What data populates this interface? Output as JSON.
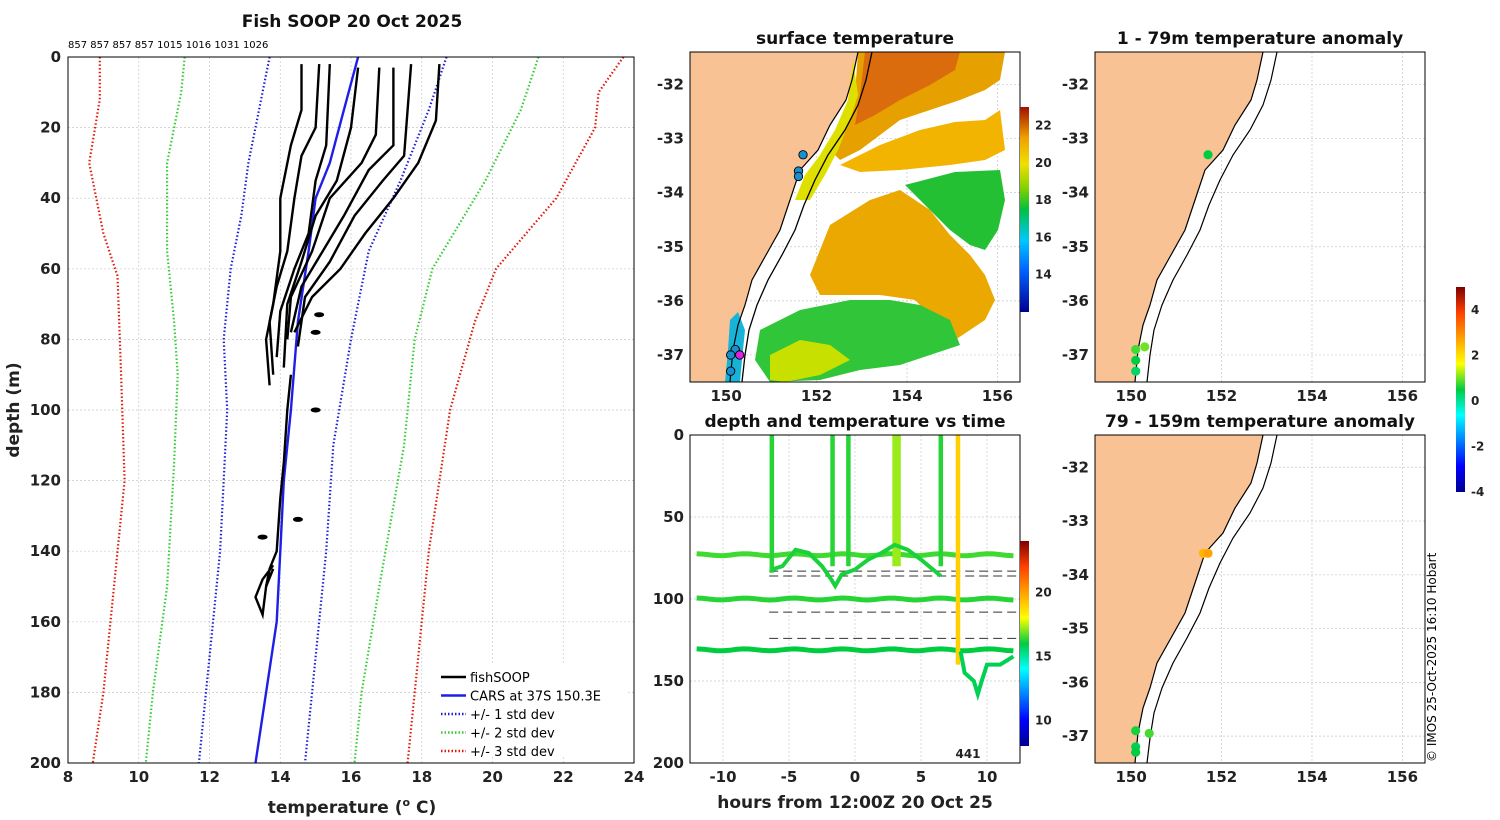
{
  "colors": {
    "land": "#f8c295",
    "black": "#000000",
    "cars": "#1e1ee6",
    "std1": "#1e1ed8",
    "std2": "#32cd32",
    "std3": "#e01a0a",
    "grid": "#c8c8c8"
  },
  "footer": {
    "copyright": "© IMOS 25-Oct-2025 16:10 Hobart"
  },
  "chart_data": [
    {
      "id": "profile",
      "type": "line",
      "title": "Fish SOOP 20 Oct 2025",
      "xlabel": "temperature (",
      "xlabel_sup": "o",
      "xlabel_unit": "C)",
      "ylabel": "depth (m)",
      "xlim": [
        8,
        24
      ],
      "ylim": [
        200,
        0
      ],
      "xticks": [
        "8",
        "10",
        "12",
        "14",
        "16",
        "18",
        "20",
        "22",
        "24"
      ],
      "yticks": [
        "0",
        "20",
        "40",
        "60",
        "80",
        "100",
        "120",
        "140",
        "160",
        "180",
        "200"
      ],
      "top_numbers": "857 857 857 857 1015 1016 1031 1026",
      "legend": [
        {
          "label": "fishSOOP",
          "style": "solid",
          "color_key": "black"
        },
        {
          "label": "CARS at 37S 150.3E",
          "style": "solid",
          "color_key": "cars"
        },
        {
          "label": "+/- 1 std dev",
          "style": "dotted",
          "color_key": "std1"
        },
        {
          "label": "+/- 2 std dev",
          "style": "dotted",
          "color_key": "std2"
        },
        {
          "label": "+/- 3 std dev",
          "style": "dotted",
          "color_key": "std3"
        }
      ],
      "series": [
        {
          "name": "CARS at 37S 150.3E",
          "color_key": "cars",
          "style": "solid",
          "points": [
            [
              16.2,
              0
            ],
            [
              15.8,
              15
            ],
            [
              15.4,
              30
            ],
            [
              15.0,
              40
            ],
            [
              14.8,
              55
            ],
            [
              14.5,
              75
            ],
            [
              14.3,
              100
            ],
            [
              14.1,
              120
            ],
            [
              14.0,
              140
            ],
            [
              13.9,
              160
            ],
            [
              13.6,
              180
            ],
            [
              13.3,
              200
            ]
          ]
        },
        {
          "name": "-1 std",
          "color_key": "std1",
          "style": "dotted",
          "points": [
            [
              13.7,
              0
            ],
            [
              13.4,
              15
            ],
            [
              13.1,
              30
            ],
            [
              12.9,
              45
            ],
            [
              12.6,
              60
            ],
            [
              12.4,
              80
            ],
            [
              12.5,
              100
            ],
            [
              12.4,
              120
            ],
            [
              12.3,
              140
            ],
            [
              12.0,
              170
            ],
            [
              11.7,
              200
            ]
          ]
        },
        {
          "name": "+1 std",
          "color_key": "std1",
          "style": "dotted",
          "points": [
            [
              18.7,
              0
            ],
            [
              18.2,
              15
            ],
            [
              17.4,
              35
            ],
            [
              16.5,
              55
            ],
            [
              16.0,
              80
            ],
            [
              15.5,
              110
            ],
            [
              15.3,
              140
            ],
            [
              15.0,
              170
            ],
            [
              14.7,
              200
            ]
          ]
        },
        {
          "name": "-2 std",
          "color_key": "std2",
          "style": "dotted",
          "points": [
            [
              11.3,
              0
            ],
            [
              11.2,
              10
            ],
            [
              10.8,
              30
            ],
            [
              10.8,
              55
            ],
            [
              11.0,
              75
            ],
            [
              11.1,
              90
            ],
            [
              11.0,
              115
            ],
            [
              10.8,
              150
            ],
            [
              10.4,
              180
            ],
            [
              10.2,
              200
            ]
          ]
        },
        {
          "name": "+2 std",
          "color_key": "std2",
          "style": "dotted",
          "points": [
            [
              21.3,
              0
            ],
            [
              20.8,
              15
            ],
            [
              19.8,
              35
            ],
            [
              18.3,
              60
            ],
            [
              17.8,
              80
            ],
            [
              17.5,
              110
            ],
            [
              16.8,
              150
            ],
            [
              16.3,
              180
            ],
            [
              16.1,
              200
            ]
          ]
        },
        {
          "name": "-3 std",
          "color_key": "std3",
          "style": "dotted",
          "points": [
            [
              8.9,
              0
            ],
            [
              8.9,
              12
            ],
            [
              8.6,
              30
            ],
            [
              9.0,
              50
            ],
            [
              9.4,
              62
            ],
            [
              9.5,
              90
            ],
            [
              9.6,
              120
            ],
            [
              9.3,
              150
            ],
            [
              9.0,
              180
            ],
            [
              8.7,
              200
            ]
          ]
        },
        {
          "name": "+3 std",
          "color_key": "std3",
          "style": "dotted",
          "points": [
            [
              23.7,
              0
            ],
            [
              23.0,
              10
            ],
            [
              22.9,
              20
            ],
            [
              21.8,
              40
            ],
            [
              20.1,
              60
            ],
            [
              19.5,
              75
            ],
            [
              18.8,
              100
            ],
            [
              18.2,
              140
            ],
            [
              17.8,
              180
            ],
            [
              17.6,
              200
            ]
          ]
        },
        {
          "name": "fishSOOP",
          "color_key": "black",
          "style": "solid",
          "points": [
            [
              14.6,
              2
            ],
            [
              14.6,
              15
            ],
            [
              14.3,
              25
            ],
            [
              14.0,
              40
            ],
            [
              14.0,
              55
            ],
            [
              13.8,
              70
            ],
            [
              13.6,
              80
            ],
            [
              13.7,
              93
            ]
          ]
        },
        {
          "name": "fishSOOP",
          "color_key": "black",
          "style": "solid",
          "points": [
            [
              15.1,
              2
            ],
            [
              15.0,
              20
            ],
            [
              14.6,
              28
            ],
            [
              14.4,
              40
            ],
            [
              14.2,
              55
            ],
            [
              13.9,
              65
            ],
            [
              13.7,
              75
            ],
            [
              13.8,
              90
            ]
          ]
        },
        {
          "name": "fishSOOP",
          "color_key": "black",
          "style": "solid",
          "points": [
            [
              15.4,
              2
            ],
            [
              15.3,
              25
            ],
            [
              15.0,
              35
            ],
            [
              14.8,
              50
            ],
            [
              14.4,
              60
            ],
            [
              14.0,
              72
            ],
            [
              13.9,
              85
            ]
          ]
        },
        {
          "name": "fishSOOP",
          "color_key": "black",
          "style": "solid",
          "points": [
            [
              16.2,
              3
            ],
            [
              16.0,
              20
            ],
            [
              15.6,
              35
            ],
            [
              15.0,
              45
            ],
            [
              14.6,
              58
            ],
            [
              14.2,
              70
            ],
            [
              14.1,
              88
            ]
          ]
        },
        {
          "name": "fishSOOP",
          "color_key": "black",
          "style": "solid",
          "points": [
            [
              16.8,
              3
            ],
            [
              16.7,
              22
            ],
            [
              16.3,
              30
            ],
            [
              15.4,
              40
            ],
            [
              14.9,
              55
            ],
            [
              14.3,
              68
            ],
            [
              14.2,
              80
            ]
          ]
        },
        {
          "name": "fishSOOP",
          "color_key": "black",
          "style": "solid",
          "points": [
            [
              17.2,
              3
            ],
            [
              17.2,
              25
            ],
            [
              16.5,
              32
            ],
            [
              15.8,
              45
            ],
            [
              15.2,
              55
            ],
            [
              14.6,
              65
            ],
            [
              14.3,
              78
            ]
          ]
        },
        {
          "name": "fishSOOP",
          "color_key": "black",
          "style": "solid",
          "points": [
            [
              17.7,
              2
            ],
            [
              17.5,
              28
            ],
            [
              16.9,
              35
            ],
            [
              16.1,
              45
            ],
            [
              15.4,
              58
            ],
            [
              14.7,
              68
            ],
            [
              14.5,
              82
            ]
          ]
        },
        {
          "name": "fishSOOP",
          "color_key": "black",
          "style": "solid",
          "points": [
            [
              18.5,
              2
            ],
            [
              18.4,
              18
            ],
            [
              17.9,
              30
            ],
            [
              17.2,
              40
            ],
            [
              16.4,
              50
            ],
            [
              15.7,
              60
            ],
            [
              14.9,
              68
            ],
            [
              14.4,
              78
            ]
          ]
        },
        {
          "name": "fishSOOP",
          "color_key": "black",
          "style": "solid",
          "points": [
            [
              14.3,
              90
            ],
            [
              14.2,
              100
            ],
            [
              14.1,
              115
            ],
            [
              14.0,
              125
            ],
            [
              13.9,
              140
            ],
            [
              13.7,
              145
            ],
            [
              13.6,
              150
            ],
            [
              13.8,
              145
            ]
          ]
        },
        {
          "name": "fishSOOP",
          "color_key": "black",
          "style": "solid",
          "points": [
            [
              13.8,
              144
            ],
            [
              13.5,
              148
            ],
            [
              13.3,
              153
            ],
            [
              13.5,
              158
            ],
            [
              13.6,
              150
            ],
            [
              13.7,
              146
            ]
          ]
        }
      ],
      "blobs": [
        [
          15.1,
          73
        ],
        [
          15.0,
          78
        ],
        [
          15.0,
          100
        ],
        [
          14.5,
          131
        ],
        [
          13.5,
          136
        ]
      ]
    },
    {
      "id": "sst-map",
      "type": "heatmap",
      "title": "surface temperature",
      "xlim": [
        149.2,
        156.5
      ],
      "ylim": [
        -37.5,
        -31.4
      ],
      "xticks": [
        "150",
        "152",
        "154",
        "156"
      ],
      "yticks": [
        "-32",
        "-33",
        "-34",
        "-35",
        "-36",
        "-37"
      ],
      "colorbar": {
        "min": 12,
        "max": 23,
        "ticks": [
          "14",
          "16",
          "18",
          "20",
          "22"
        ]
      },
      "stations": [
        [
          151.7,
          -33.3
        ],
        [
          151.6,
          -33.6
        ],
        [
          151.6,
          -33.7
        ],
        [
          150.2,
          -36.9
        ],
        [
          150.1,
          -37.0
        ],
        [
          150.1,
          -37.3
        ],
        [
          150.3,
          -37.0
        ]
      ]
    },
    {
      "id": "time-depth",
      "type": "scatter",
      "title": "depth and temperature vs time",
      "xlabel": "hours from 12:00Z 20 Oct 25",
      "xlim": [
        -12.5,
        12.5
      ],
      "ylim": [
        200,
        0
      ],
      "xticks": [
        "-10",
        "-5",
        "0",
        "5",
        "10"
      ],
      "yticks": [
        "0",
        "50",
        "100",
        "150",
        "200"
      ],
      "colorbar": {
        "min": 8,
        "max": 24,
        "ticks": [
          "10",
          "15",
          "20"
        ]
      },
      "annotation": "441",
      "hlines_dashed": [
        83,
        86,
        108,
        124
      ],
      "tracks": [
        {
          "depth_base": 73,
          "temp": 16.5
        },
        {
          "depth_base": 100,
          "temp": 16.3
        },
        {
          "depth_base": 131,
          "temp": 16.0
        }
      ],
      "casts_hours": [
        -6.3,
        -1.7,
        -0.5,
        3.0,
        3.3,
        6.5,
        7.8
      ]
    },
    {
      "id": "anom-shallow",
      "type": "scatter",
      "title": "1 - 79m temperature anomaly",
      "xlim": [
        149.2,
        156.5
      ],
      "ylim": [
        -37.5,
        -31.4
      ],
      "xticks": [
        "150",
        "152",
        "154",
        "156"
      ],
      "yticks": [
        "-32",
        "-33",
        "-34",
        "-35",
        "-36",
        "-37"
      ],
      "points": [
        [
          151.7,
          -33.3,
          0.5
        ],
        [
          150.1,
          -36.9,
          0.8
        ],
        [
          150.3,
          -36.85,
          1.0
        ],
        [
          150.1,
          -37.1,
          0.5
        ],
        [
          150.1,
          -37.3,
          0.3
        ]
      ]
    },
    {
      "id": "anom-deep",
      "type": "scatter",
      "title": "79 - 159m temperature anomaly",
      "xlim": [
        149.2,
        156.5
      ],
      "ylim": [
        -37.5,
        -31.4
      ],
      "xticks": [
        "150",
        "152",
        "154",
        "156"
      ],
      "yticks": [
        "-32",
        "-33",
        "-34",
        "-35",
        "-36",
        "-37"
      ],
      "points": [
        [
          151.6,
          -33.6,
          2.5
        ],
        [
          151.7,
          -33.6,
          2.7
        ],
        [
          150.1,
          -36.9,
          0.6
        ],
        [
          150.4,
          -36.95,
          0.8
        ],
        [
          150.1,
          -37.2,
          0.4
        ],
        [
          150.1,
          -37.3,
          0.5
        ]
      ],
      "colorbar": {
        "min": -4,
        "max": 5,
        "ticks": [
          "4",
          "2",
          "0",
          "-2",
          "-4"
        ]
      }
    }
  ]
}
